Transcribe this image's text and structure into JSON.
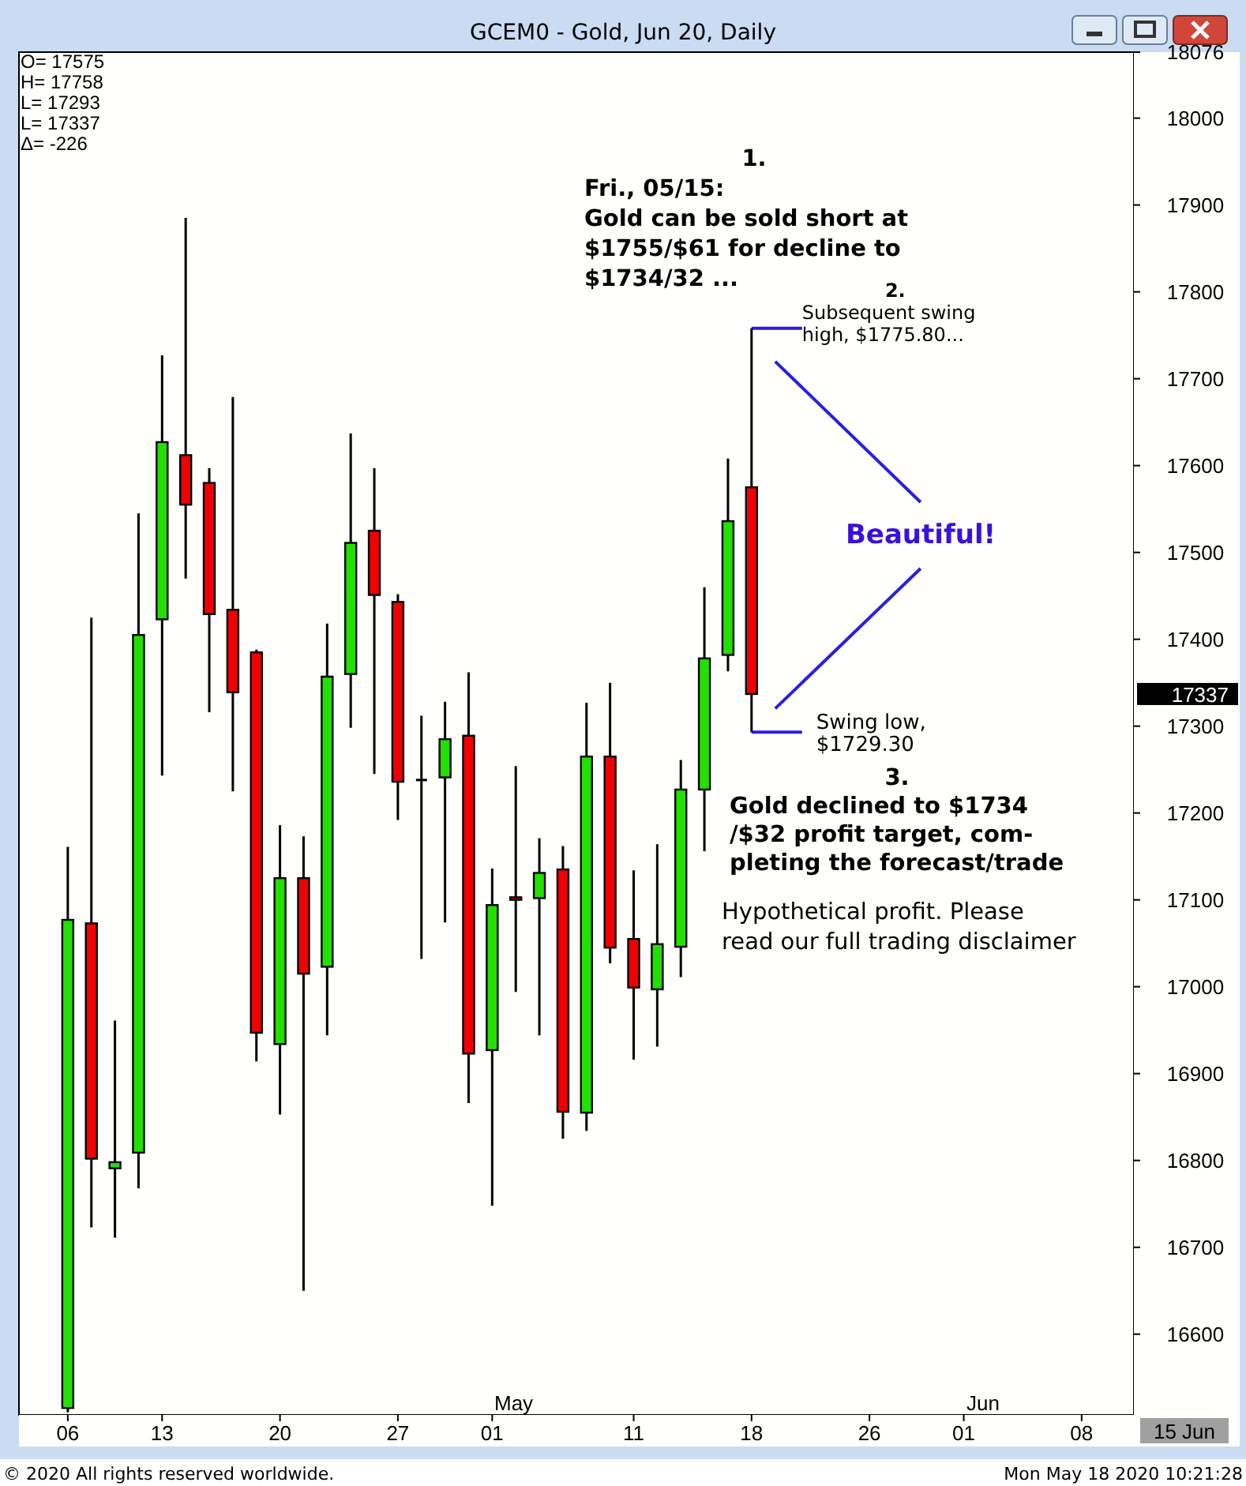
{
  "chart_data": {
    "type": "candlestick",
    "title": "GCEM0 - Gold, Jun 20, Daily",
    "categories": [
      null,
      "06",
      null,
      null,
      null,
      "13",
      null,
      null,
      null,
      null,
      "20",
      null,
      null,
      null,
      null,
      "27",
      null,
      null,
      null,
      "01",
      null,
      null,
      null,
      null,
      null,
      "11",
      null,
      null,
      null,
      null,
      "18",
      null,
      null,
      null,
      null,
      "26",
      null,
      null,
      null,
      "01",
      null,
      null,
      null,
      null,
      "08",
      null,
      null
    ],
    "ohlc": [
      null,
      [
        16515,
        17161,
        16510,
        17077
      ],
      [
        17073,
        17425,
        16723,
        16802
      ],
      [
        16791,
        16961,
        16711,
        16798
      ],
      [
        16809,
        17545,
        16768,
        17405
      ],
      [
        17423,
        17727,
        17243,
        17627
      ],
      [
        17612,
        17885,
        17470,
        17555
      ],
      [
        17580,
        17597,
        17316,
        17429
      ],
      [
        17434,
        17679,
        17225,
        17339
      ],
      [
        17385,
        17388,
        16914,
        16947
      ],
      [
        16934,
        17186,
        16853,
        17125
      ],
      [
        17125,
        17173,
        16650,
        17015
      ],
      [
        17023,
        17418,
        16944,
        17357
      ],
      [
        17360,
        17637,
        17298,
        17511
      ],
      [
        17525,
        17597,
        17245,
        17451
      ],
      [
        17443,
        17452,
        17192,
        17236
      ],
      [
        17238,
        17312,
        17032,
        17238
      ],
      [
        17241,
        17328,
        17074,
        17285
      ],
      [
        17289,
        17362,
        16866,
        16923
      ],
      [
        16927,
        17136,
        16748,
        17094
      ],
      [
        17103,
        17254,
        16994,
        17100
      ],
      [
        17102,
        17171,
        16944,
        17131
      ],
      [
        17135,
        17162,
        16825,
        16856
      ],
      [
        16855,
        17327,
        16834,
        17265
      ],
      [
        17265,
        17350,
        17027,
        17045
      ],
      [
        17055,
        17134,
        16916,
        16999
      ],
      [
        16997,
        17164,
        16931,
        17049
      ],
      [
        17046,
        17261,
        17011,
        17227
      ],
      [
        17227,
        17460,
        17156,
        17378
      ],
      [
        17382,
        17608,
        17363,
        17536
      ],
      [
        17575,
        17758,
        17293,
        17337
      ],
      null,
      null,
      null,
      null,
      null,
      null,
      null,
      null,
      null,
      null,
      null,
      null,
      null,
      null,
      null,
      null
    ],
    "ylim": [
      16507,
      18076
    ],
    "yticks": [
      16600,
      16700,
      16800,
      16900,
      17000,
      17100,
      17200,
      17300,
      17400,
      17500,
      17600,
      17700,
      17800,
      17900,
      18000,
      18076
    ],
    "annotations": [
      "O= 17575",
      "H= 17758",
      "L= 17293",
      "L= 17337",
      "Δ= -226",
      "1.\nFri., 05/15:\nGold can be sold short at\n$1755/$61 for decline to\n$1734/32 ...",
      {
        "text": "2.\nSubsequent swing\nhigh, $1775.80...",
        "x": "18",
        "y": 17758
      },
      "Beautiful!",
      {
        "text": "Swing low,\n$1729.30",
        "x": "18",
        "y": 17293
      },
      "3.\nGold declined to $1734\n/$32 profit target, com-\npleting the forecast/trade",
      "Hypothetical profit.  Please\nread our full trading disclaimer",
      "May",
      "Jun",
      "17337",
      "15 Jun",
      "© 2020 All rights reserved worldwide.",
      "Mon May 18 2020 10:21:28"
    ]
  }
}
